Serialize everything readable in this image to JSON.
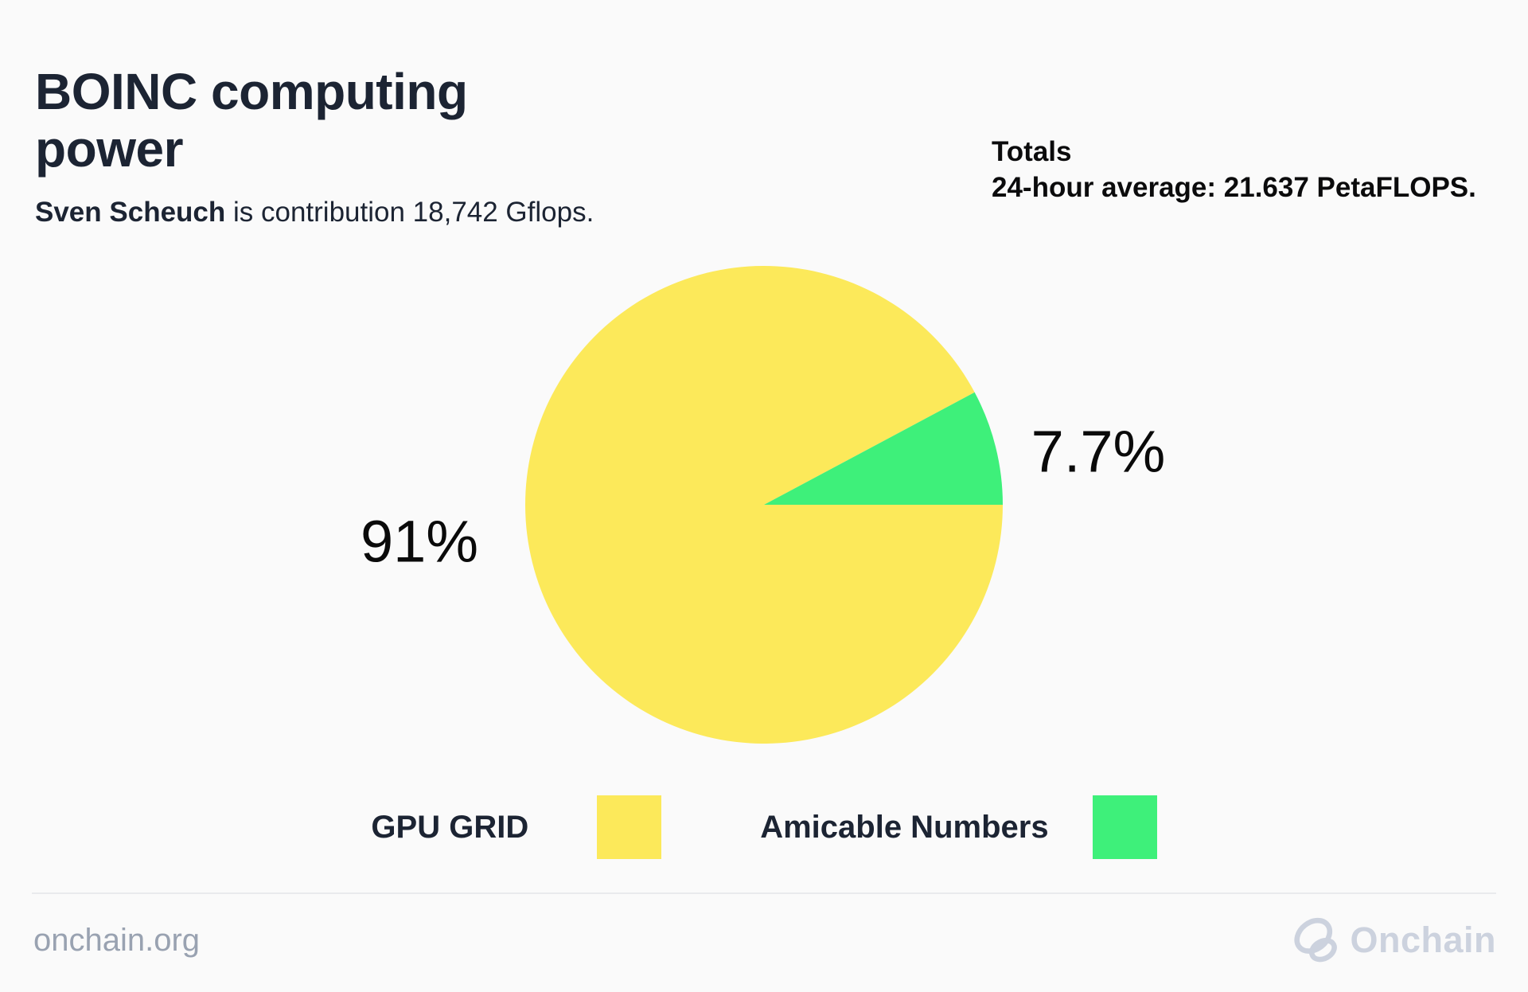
{
  "header": {
    "title": "BOINC computing\npower",
    "subtitle": {
      "name": "Sven Scheuch",
      "rest": " is contribution 18,742 Gflops."
    },
    "totals": {
      "label": "Totals",
      "value": "24-hour average: 21.637 PetaFLOPS."
    }
  },
  "chart_data": {
    "type": "pie",
    "title": "BOINC computing power",
    "categories": [
      "GPU GRID",
      "Amicable Numbers"
    ],
    "values": [
      91,
      7.7
    ],
    "value_labels": [
      "91%",
      "7.7%"
    ],
    "colors": [
      "#FCE95A",
      "#3EF07A"
    ],
    "start_angle_deg": 0,
    "direction": "clockwise",
    "legend_position": "bottom"
  },
  "footer": {
    "site": "onchain.org",
    "brand": "Onchain"
  },
  "colors": {
    "background": "#FAFAFA",
    "title_text": "#1C2433",
    "totals_text": "#0B0B0C",
    "percent_label_text": "#0A0A0A",
    "legend_text": "#1C2433",
    "footer_text": "#99A2B1",
    "brand_gray": "#CCD2DE",
    "divider": "#E9EAED"
  }
}
